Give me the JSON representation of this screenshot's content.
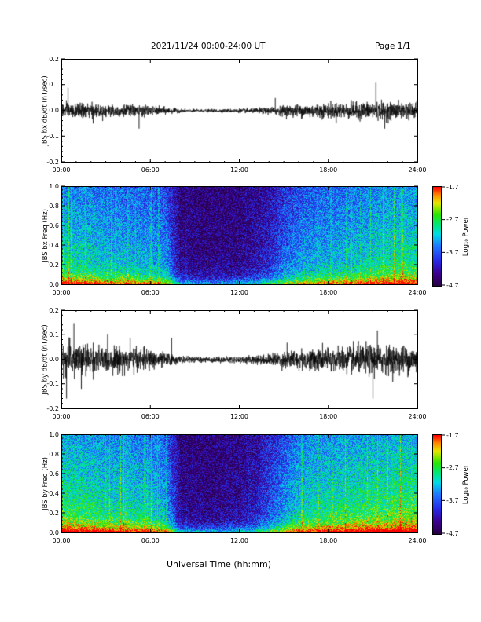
{
  "header": {
    "title": "2021/11/24  00:00-24:00 UT",
    "page": "Page 1/1"
  },
  "x_axis_title": "Universal Time (hh:mm)",
  "colorbar_label": "Log₁₀ Power",
  "colorbar_ticks": [
    "-1.7",
    "-2.7",
    "-3.7",
    "-4.7"
  ],
  "colors": {
    "frame": "#000000",
    "trace": "#000000"
  },
  "chart_data": [
    {
      "type": "line",
      "ylabel": "JBS bx dB/dt (nT/sec)",
      "x_ticks": [
        "00:00",
        "06:00",
        "12:00",
        "18:00",
        "24:00"
      ],
      "y_ticks": [
        "0.2",
        "0.1",
        "0.0",
        "-0.1",
        "-0.2"
      ],
      "xlim": [
        0,
        24
      ],
      "ylim": [
        -0.2,
        0.2
      ],
      "envelope": {
        "hours": [
          0,
          1,
          2,
          3,
          4,
          5,
          6,
          7,
          8,
          9,
          10,
          11,
          12,
          13,
          14,
          15,
          16,
          17,
          18,
          19,
          20,
          21,
          22,
          23,
          24
        ],
        "amplitude": [
          0.025,
          0.025,
          0.024,
          0.022,
          0.022,
          0.02,
          0.016,
          0.012,
          0.006,
          0.005,
          0.005,
          0.006,
          0.007,
          0.008,
          0.012,
          0.018,
          0.022,
          0.025,
          0.025,
          0.027,
          0.028,
          0.03,
          0.03,
          0.028,
          0.028
        ]
      },
      "spikes": [
        [
          0.4,
          0.09
        ],
        [
          2.1,
          -0.05
        ],
        [
          5.2,
          -0.07
        ],
        [
          21.2,
          0.11
        ],
        [
          21.8,
          -0.07
        ],
        [
          14.4,
          0.05
        ]
      ]
    },
    {
      "type": "heatmap",
      "ylabel": "JBS bx Freq (Hz)",
      "x_ticks": [
        "00:00",
        "06:00",
        "12:00",
        "18:00",
        "24:00"
      ],
      "y_ticks": [
        "1.0",
        "0.8",
        "0.6",
        "0.4",
        "0.2",
        "0.0"
      ],
      "xlim": [
        0,
        24
      ],
      "ylim": [
        0,
        1.0
      ],
      "zlim": [
        -4.7,
        -1.7
      ],
      "activity": {
        "hours": [
          0,
          1,
          2,
          3,
          4,
          5,
          6,
          7,
          8,
          9,
          10,
          11,
          12,
          13,
          14,
          15,
          16,
          17,
          18,
          19,
          20,
          21,
          22,
          23,
          24
        ],
        "level": [
          0.75,
          0.72,
          0.7,
          0.65,
          0.65,
          0.62,
          0.6,
          0.55,
          0.15,
          0.12,
          0.12,
          0.13,
          0.15,
          0.2,
          0.3,
          0.45,
          0.55,
          0.6,
          0.62,
          0.65,
          0.68,
          0.72,
          0.75,
          0.78,
          0.78
        ]
      }
    },
    {
      "type": "line",
      "ylabel": "JBS by dB/dt (nT/sec)",
      "x_ticks": [
        "00:00",
        "06:00",
        "12:00",
        "18:00",
        "24:00"
      ],
      "y_ticks": [
        "0.2",
        "0.1",
        "0.0",
        "-0.1",
        "-0.2"
      ],
      "xlim": [
        0,
        24
      ],
      "ylim": [
        -0.2,
        0.2
      ],
      "envelope": {
        "hours": [
          0,
          1,
          2,
          3,
          4,
          5,
          6,
          7,
          8,
          9,
          10,
          11,
          12,
          13,
          14,
          15,
          16,
          17,
          18,
          19,
          20,
          21,
          22,
          23,
          24
        ],
        "amplitude": [
          0.06,
          0.06,
          0.05,
          0.045,
          0.045,
          0.04,
          0.035,
          0.025,
          0.012,
          0.01,
          0.01,
          0.011,
          0.012,
          0.015,
          0.02,
          0.03,
          0.035,
          0.04,
          0.042,
          0.045,
          0.05,
          0.055,
          0.05,
          0.05,
          0.05
        ]
      },
      "spikes": [
        [
          0.3,
          -0.16
        ],
        [
          0.8,
          0.15
        ],
        [
          1.3,
          -0.12
        ],
        [
          4.6,
          0.09
        ],
        [
          7.4,
          0.09
        ],
        [
          21.0,
          -0.16
        ],
        [
          21.3,
          0.12
        ],
        [
          15.2,
          0.07
        ]
      ]
    },
    {
      "type": "heatmap",
      "ylabel": "JBS by Freq (Hz)",
      "x_ticks": [
        "00:00",
        "06:00",
        "12:00",
        "18:00",
        "24:00"
      ],
      "y_ticks": [
        "1.0",
        "0.8",
        "0.6",
        "0.4",
        "0.2",
        "0.0"
      ],
      "xlim": [
        0,
        24
      ],
      "ylim": [
        0,
        1.0
      ],
      "zlim": [
        -4.7,
        -1.7
      ],
      "activity": {
        "hours": [
          0,
          1,
          2,
          3,
          4,
          5,
          6,
          7,
          8,
          9,
          10,
          11,
          12,
          13,
          14,
          15,
          16,
          17,
          18,
          19,
          20,
          21,
          22,
          23,
          24
        ],
        "level": [
          0.85,
          0.82,
          0.8,
          0.75,
          0.75,
          0.72,
          0.7,
          0.6,
          0.15,
          0.13,
          0.13,
          0.15,
          0.18,
          0.25,
          0.4,
          0.55,
          0.7,
          0.75,
          0.78,
          0.8,
          0.82,
          0.85,
          0.85,
          0.88,
          0.88
        ]
      }
    }
  ]
}
